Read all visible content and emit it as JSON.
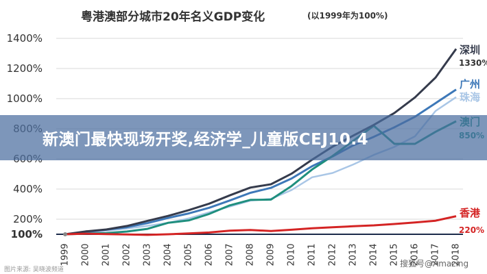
{
  "header": {
    "title": "粤港澳部分城市20年名义GDP变化",
    "subtitle": "(以1999年为100%)"
  },
  "overlay": {
    "banner_text": "新澳门最快现场开奖,经济学_儿童版CEJ10.4",
    "watermark_left": "图片来源: 吴晓波频道",
    "watermark_right": "搜狐号@Amazing"
  },
  "colors": {
    "深圳": "#353b4c",
    "广州": "#3d78b8",
    "珠海": "#a9c6e6",
    "澳门": "#1f8f7e",
    "香港": "#d42424",
    "baseline": "#1b2a4a",
    "grid": "#d9d9d9"
  },
  "chart_data": {
    "type": "line",
    "title": "粤港澳部分城市20年名义GDP变化",
    "subtitle": "(以1999年为100%)",
    "x": [
      "1999",
      "2000",
      "2001",
      "2002",
      "2003",
      "2004",
      "2005",
      "2006",
      "2007",
      "2008",
      "2009",
      "2010",
      "2011",
      "2012",
      "2013",
      "2014",
      "2015",
      "2016",
      "2017",
      "2018"
    ],
    "yticks": [
      "1400%",
      "1200%",
      "1000%",
      "800%",
      "600%",
      "400%",
      "200%",
      "100%"
    ],
    "ylim": [
      100,
      1400
    ],
    "grid": true,
    "series": [
      {
        "name": "深圳",
        "end_label": "1330%",
        "values": [
          100,
          119,
          132,
          155,
          189,
          222,
          260,
          303,
          358,
          410,
          432,
          502,
          595,
          682,
          755,
          826,
          905,
          1008,
          1140,
          1330
        ]
      },
      {
        "name": "广州",
        "values": [
          100,
          115,
          131,
          147,
          174,
          208,
          238,
          276,
          324,
          375,
          408,
          470,
          552,
          617,
          690,
          747,
          810,
          880,
          970,
          1060
        ]
      },
      {
        "name": "珠海",
        "values": [
          100,
          112,
          124,
          138,
          156,
          176,
          205,
          246,
          284,
          323,
          335,
          393,
          478,
          507,
          563,
          627,
          680,
          750,
          918,
          1010
        ]
      },
      {
        "name": "澳门",
        "end_label": "850%",
        "values": [
          100,
          104,
          108,
          118,
          136,
          176,
          192,
          235,
          292,
          328,
          330,
          420,
          530,
          620,
          720,
          820,
          700,
          700,
          780,
          850
        ]
      },
      {
        "name": "香港",
        "end_label": "220%",
        "values": [
          100,
          104,
          101,
          99,
          96,
          100,
          106,
          112,
          124,
          128,
          122,
          130,
          140,
          147,
          153,
          159,
          168,
          178,
          190,
          220
        ]
      }
    ]
  }
}
